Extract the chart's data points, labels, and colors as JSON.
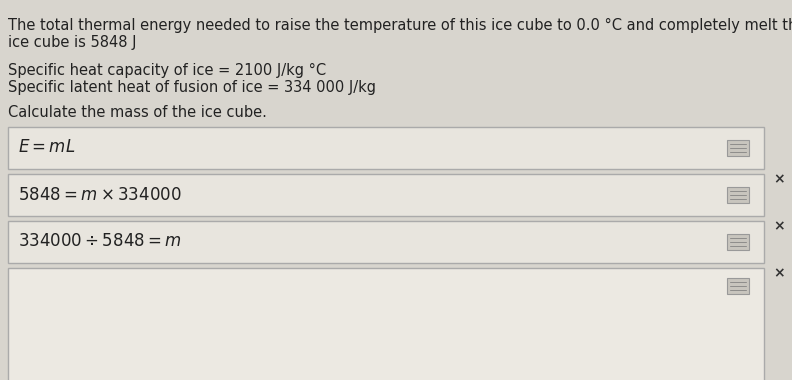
{
  "bg_color": "#d8d5ce",
  "text_color": "#222222",
  "paragraph1_line1": "The total thermal energy needed to raise the temperature of this ice cube to 0.0 °C and completely melt the",
  "paragraph1_line2": "ice cube is 5848 J",
  "paragraph2_line1": "Specific heat capacity of ice = 2100 J/kg °C",
  "paragraph2_line2": "Specific latent heat of fusion of ice = 334 000 J/kg",
  "paragraph3": "Calculate the mass of the ice cube.",
  "box1_formula": "$E = mL$",
  "box2_formula": "$5848 = m \\times 334000$",
  "box3_formula": "$334000 \\div 5848 = m$",
  "box_bg": "#e8e5de",
  "box_bg4": "#ece9e2",
  "box_border": "#aaaaaa",
  "x_mark_color": "#333333",
  "calc_icon_bg": "#c8c5be",
  "calc_icon_border": "#999999",
  "font_size_para": 10.5,
  "font_size_formula": 12,
  "font_size_x": 10
}
